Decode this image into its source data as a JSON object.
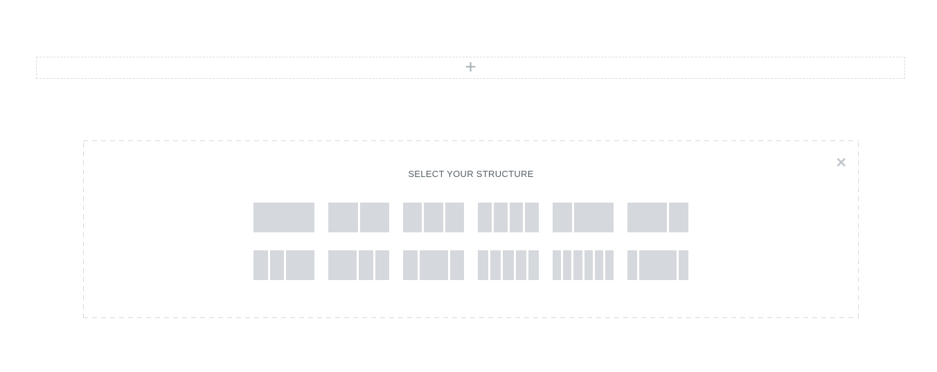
{
  "add_section_bar": {
    "plus_icon": "+"
  },
  "structure_panel": {
    "title": "SELECT YOUR STRUCTURE",
    "close_icon": "×",
    "structures": [
      {
        "id": "100",
        "columns": [
          1
        ]
      },
      {
        "id": "50-50",
        "columns": [
          1,
          1
        ]
      },
      {
        "id": "33-33-33",
        "columns": [
          1,
          1,
          1
        ]
      },
      {
        "id": "25-25-25-25",
        "columns": [
          1,
          1,
          1,
          1
        ]
      },
      {
        "id": "33-66",
        "columns": [
          1,
          2
        ]
      },
      {
        "id": "66-33",
        "columns": [
          2,
          1
        ]
      },
      {
        "id": "25-25-50",
        "columns": [
          1,
          1,
          2
        ]
      },
      {
        "id": "50-25-25",
        "columns": [
          2,
          1,
          1
        ]
      },
      {
        "id": "25-50-25",
        "columns": [
          1,
          2,
          1
        ]
      },
      {
        "id": "20-20-20-20-20",
        "columns": [
          1,
          1,
          1,
          1,
          1
        ]
      },
      {
        "id": "16-16-16-16-16-16",
        "columns": [
          1,
          1,
          1,
          1,
          1,
          1
        ]
      },
      {
        "id": "16-66-16",
        "columns": [
          1,
          4,
          1
        ]
      }
    ]
  },
  "colors": {
    "tile": "#d5d8dc",
    "panel_border": "#d5d8dc",
    "dropzone_border": "#d8dadd",
    "title_text": "#556066",
    "plus_icon": "#a4afb7",
    "close_icon": "#c3c8cd",
    "background": "#ffffff"
  }
}
